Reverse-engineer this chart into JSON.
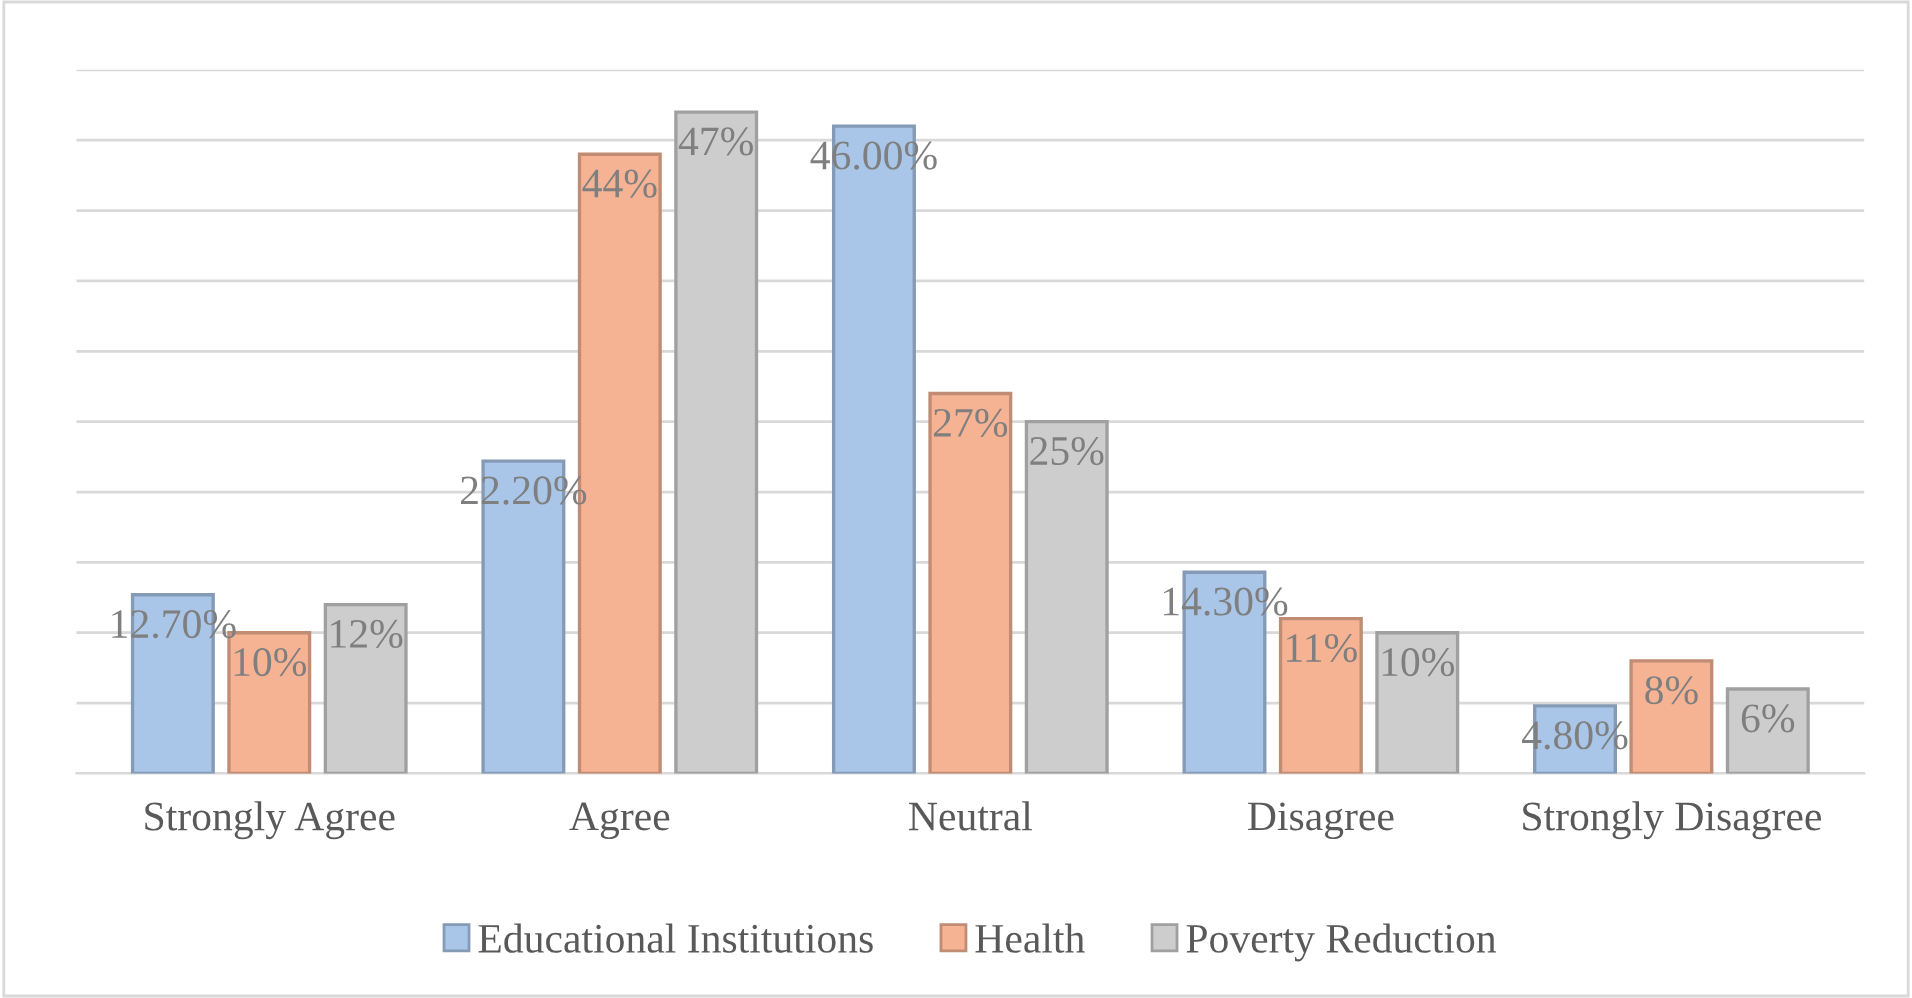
{
  "chart_data": {
    "type": "bar",
    "categories": [
      "Strongly Agree",
      "Agree",
      "Neutral",
      "Disagree",
      "Strongly Disagree"
    ],
    "series": [
      {
        "name": "Educational Institutions",
        "color": "#a9c6e8",
        "values": [
          12.7,
          22.2,
          46.0,
          14.3,
          4.8
        ],
        "value_labels": [
          "12.70%",
          "22.20%",
          "46.00%",
          "14.30%",
          "4.80%"
        ]
      },
      {
        "name": "Health",
        "color": "#f6b394",
        "values": [
          10,
          44,
          27,
          11,
          8
        ],
        "value_labels": [
          "10%",
          "44%",
          "27%",
          "11%",
          "8%"
        ]
      },
      {
        "name": "Poverty Reduction",
        "color": "#cdcdcd",
        "values": [
          12,
          47,
          25,
          10,
          6
        ],
        "value_labels": [
          "12%",
          "47%",
          "25%",
          "10%",
          "6%"
        ]
      }
    ],
    "ylim": [
      0,
      50
    ],
    "yticks": [
      {
        "value": 0,
        "label": null
      },
      {
        "value": 5,
        "label": null
      },
      {
        "value": 10,
        "label": null
      },
      {
        "value": 15,
        "label": null
      },
      {
        "value": 20,
        "label": null
      },
      {
        "value": 25,
        "label": null
      },
      {
        "value": 30,
        "label": null
      },
      {
        "value": 35,
        "label": null
      },
      {
        "value": 40,
        "label": null
      },
      {
        "value": 45,
        "label": null
      },
      {
        "value": 50,
        "label": null
      }
    ],
    "grid": "y",
    "legend": "bottom",
    "tick_labels": "x"
  }
}
